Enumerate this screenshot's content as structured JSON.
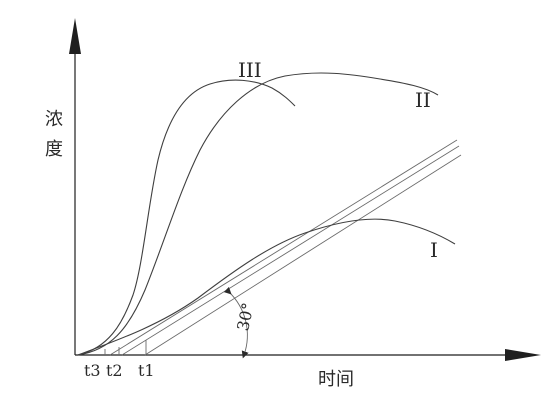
{
  "chart_data": {
    "type": "line",
    "title": "",
    "xlabel": "时间",
    "ylabel_chars": [
      "浓",
      "度"
    ],
    "x_tick_labels": [
      "t3",
      "t2",
      "t1"
    ],
    "angle_label": "30°",
    "series": [
      {
        "name": "I"
      },
      {
        "name": "II"
      },
      {
        "name": "III"
      }
    ]
  }
}
